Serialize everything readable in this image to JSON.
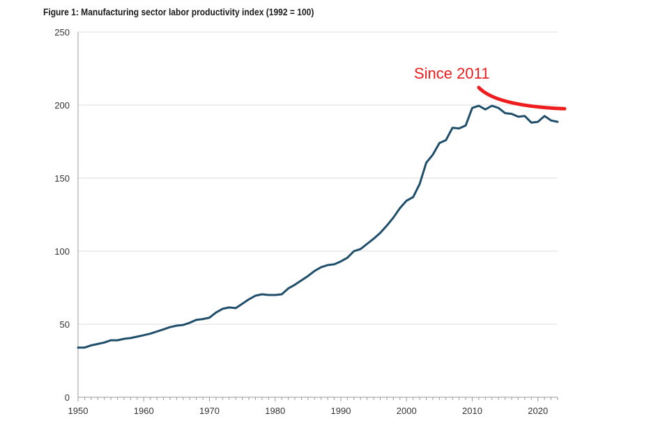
{
  "chart_data": {
    "type": "line",
    "title": "Figure 1: Manufacturing sector labor productivity index (1992 = 100)",
    "xlabel": "",
    "ylabel": "",
    "xlim": [
      1950,
      2023
    ],
    "ylim": [
      0,
      250
    ],
    "x_ticks": [
      1950,
      1960,
      1970,
      1980,
      1990,
      2000,
      2010,
      2020
    ],
    "y_ticks": [
      0,
      50,
      100,
      150,
      200,
      250
    ],
    "grid": "horizontal",
    "colors": {
      "line": "#1f4e6b",
      "annotation": "#ee1c1c",
      "grid": "#dcdcdc",
      "axis": "#999999"
    },
    "annotation": {
      "text": "Since 2011",
      "curve_from": [
        2011,
        212
      ],
      "curve_to": [
        2023,
        197
      ]
    },
    "series": [
      {
        "x": [
          1950,
          1951,
          1952,
          1953,
          1954,
          1955,
          1956,
          1957,
          1958,
          1959,
          1960,
          1961,
          1962,
          1963,
          1964,
          1965,
          1966,
          1967,
          1968,
          1969,
          1970,
          1971,
          1972,
          1973,
          1974,
          1975,
          1976,
          1977,
          1978,
          1979,
          1980,
          1981,
          1982,
          1983,
          1984,
          1985,
          1986,
          1987,
          1988,
          1989,
          1990,
          1991,
          1992,
          1993,
          1994,
          1995,
          1996,
          1997,
          1998,
          1999,
          2000,
          2001,
          2002,
          2003,
          2004,
          2005,
          2006,
          2007,
          2008,
          2009,
          2010,
          2011,
          2012,
          2013,
          2014,
          2015,
          2016,
          2017,
          2018,
          2019,
          2020,
          2021,
          2022,
          2023
        ],
        "values": [
          34,
          34,
          35.5,
          36.5,
          37.5,
          39,
          39,
          40,
          40.5,
          41.5,
          42.5,
          43.5,
          45,
          46.5,
          48,
          49,
          49.5,
          51,
          53,
          53.5,
          54.5,
          58,
          60.5,
          61.5,
          61,
          64,
          67,
          69.5,
          70.5,
          70,
          70,
          70.5,
          74.5,
          77,
          80,
          83,
          86.5,
          89,
          90.5,
          91,
          93,
          95.5,
          100,
          101.5,
          105,
          108.5,
          112.5,
          117.5,
          123,
          129.5,
          134.5,
          137,
          146,
          160.5,
          166,
          174,
          176,
          184.5,
          184,
          186,
          198,
          199.5,
          197,
          199.5,
          198,
          194.5,
          194,
          192,
          192.5,
          188,
          188.5,
          192.5,
          189.5,
          188.5
        ]
      }
    ]
  }
}
